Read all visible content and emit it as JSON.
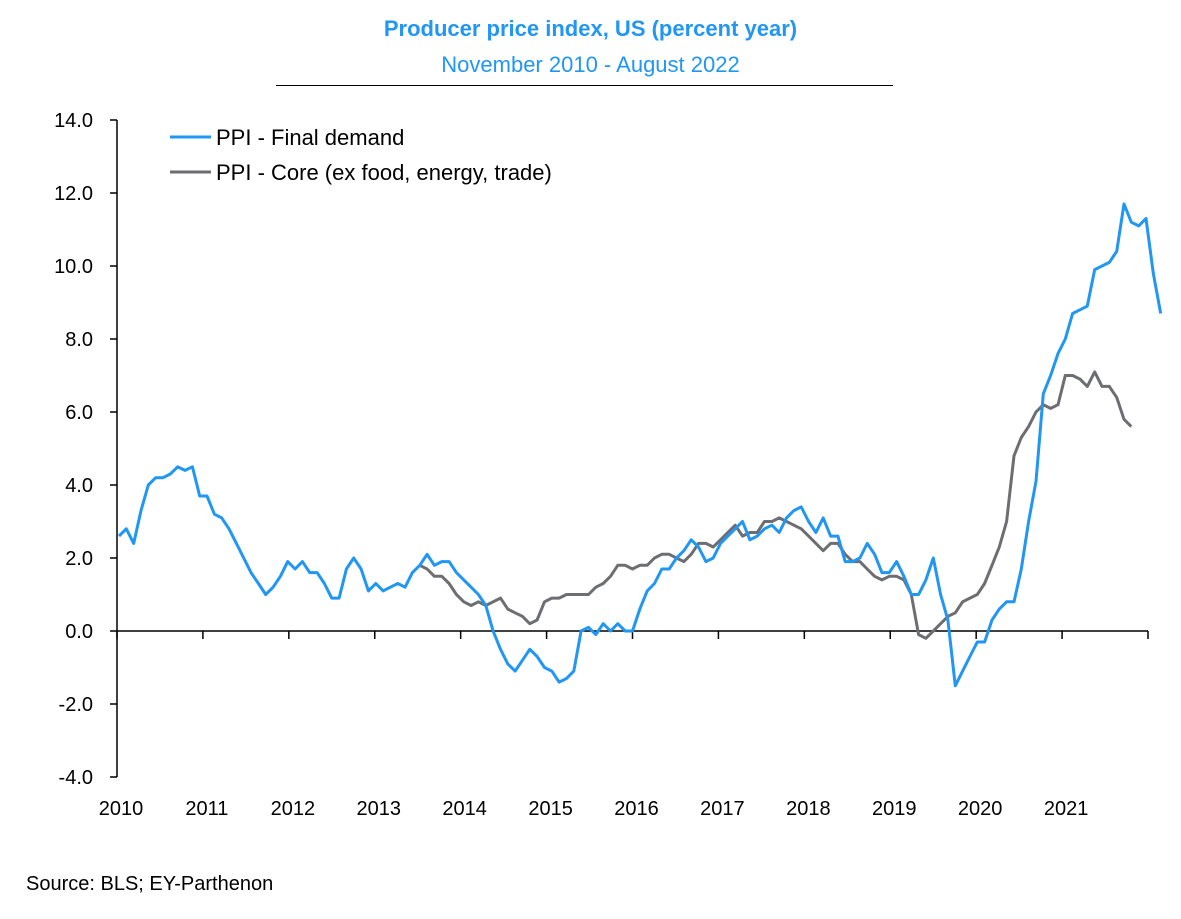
{
  "chart_data": {
    "type": "line",
    "title": "Producer price index, US (percent year)",
    "subtitle": "November 2010 - August 2022",
    "source": "Source: BLS; EY-Parthenon",
    "xlabel": "",
    "ylabel": "",
    "ylim": [
      -4.0,
      14.0
    ],
    "y_ticks": [
      "14.0",
      "12.0",
      "10.0",
      "8.0",
      "6.0",
      "4.0",
      "2.0",
      "0.0",
      "-2.0",
      "-4.0"
    ],
    "x_ticks": [
      "2010",
      "2011",
      "2012",
      "2013",
      "2014",
      "2015",
      "2016",
      "2017",
      "2018",
      "2019",
      "2020",
      "2021"
    ],
    "grid": false,
    "legend_position": "top-left",
    "series": [
      {
        "name": "PPI - Final demand",
        "color": "#2196f3",
        "values": [
          2.6,
          2.8,
          2.4,
          3.3,
          4.0,
          4.2,
          4.2,
          4.3,
          4.5,
          4.4,
          4.5,
          3.7,
          3.7,
          3.2,
          3.1,
          2.8,
          2.4,
          2.0,
          1.6,
          1.3,
          1.0,
          1.2,
          1.5,
          1.9,
          1.7,
          1.9,
          1.6,
          1.6,
          1.3,
          0.9,
          0.9,
          1.7,
          2.0,
          1.7,
          1.1,
          1.3,
          1.1,
          1.2,
          1.3,
          1.2,
          1.6,
          1.8,
          2.1,
          1.8,
          1.9,
          1.9,
          1.6,
          1.4,
          1.2,
          1.0,
          0.7,
          0.0,
          -0.5,
          -0.9,
          -1.1,
          -0.8,
          -0.5,
          -0.7,
          -1.0,
          -1.1,
          -1.4,
          -1.3,
          -1.1,
          0.0,
          0.1,
          -0.1,
          0.2,
          0.0,
          0.2,
          0.0,
          0.0,
          0.6,
          1.1,
          1.3,
          1.7,
          1.7,
          2.0,
          2.2,
          2.5,
          2.3,
          1.9,
          2.0,
          2.4,
          2.6,
          2.8,
          3.0,
          2.5,
          2.6,
          2.8,
          2.9,
          2.7,
          3.1,
          3.3,
          3.4,
          3.0,
          2.7,
          3.1,
          2.6,
          2.6,
          1.9,
          1.9,
          2.0,
          2.4,
          2.1,
          1.6,
          1.6,
          1.9,
          1.5,
          1.0,
          1.0,
          1.4,
          2.0,
          1.0,
          0.3,
          -1.5,
          -1.1,
          -0.7,
          -0.3,
          -0.3,
          0.3,
          0.6,
          0.8,
          0.8,
          1.7,
          3.0,
          4.1,
          6.5,
          7.0,
          7.6,
          8.0,
          8.7,
          8.8,
          8.9,
          9.9,
          10.0,
          10.1,
          10.4,
          11.7,
          11.2,
          11.1,
          11.3,
          9.8,
          8.7
        ]
      },
      {
        "name": "PPI - Core (ex food, energy, trade)",
        "color": "#6d6e71",
        "values": [
          1.8,
          1.7,
          1.5,
          1.5,
          1.3,
          1.0,
          0.8,
          0.7,
          0.8,
          0.7,
          0.8,
          0.9,
          0.6,
          0.5,
          0.4,
          0.2,
          0.3,
          0.8,
          0.9,
          0.9,
          1.0,
          1.0,
          1.0,
          1.0,
          1.2,
          1.3,
          1.5,
          1.8,
          1.8,
          1.7,
          1.8,
          1.8,
          2.0,
          2.1,
          2.1,
          2.0,
          1.9,
          2.1,
          2.4,
          2.4,
          2.3,
          2.5,
          2.7,
          2.9,
          2.6,
          2.7,
          2.7,
          3.0,
          3.0,
          3.1,
          3.0,
          2.9,
          2.8,
          2.6,
          2.4,
          2.2,
          2.4,
          2.4,
          2.1,
          1.9,
          1.9,
          1.7,
          1.5,
          1.4,
          1.5,
          1.5,
          1.4,
          1.0,
          -0.1,
          -0.2,
          0.0,
          0.2,
          0.4,
          0.5,
          0.8,
          0.9,
          1.0,
          1.3,
          1.8,
          2.3,
          3.0,
          4.8,
          5.3,
          5.6,
          6.0,
          6.2,
          6.1,
          6.2,
          7.0,
          7.0,
          6.9,
          6.7,
          7.1,
          6.7,
          6.7,
          6.4,
          5.8,
          5.6
        ]
      }
    ]
  },
  "legend": {
    "items": [
      "PPI - Final demand",
      "PPI - Core (ex food, energy, trade)"
    ]
  }
}
